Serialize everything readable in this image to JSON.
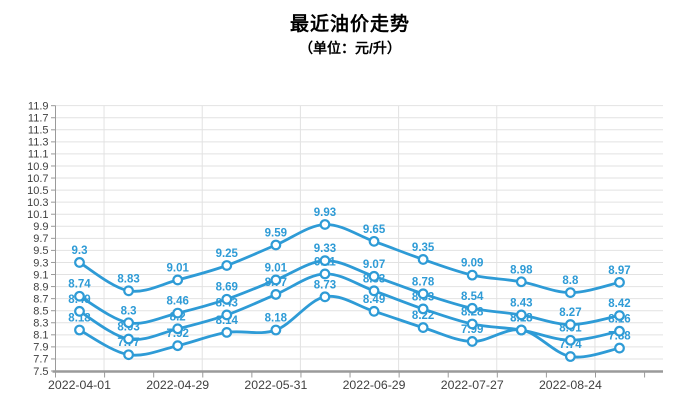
{
  "title": "最近油价走势",
  "subtitle": "（单位：元/升）",
  "chart_data": {
    "type": "line",
    "title": "最近油价走势",
    "subtitle": "（单位：元/升）",
    "x_tick_labels": [
      "2022-04-01",
      "2022-04-29",
      "2022-05-31",
      "2022-06-29",
      "2022-07-27",
      "2022-08-24"
    ],
    "points_per_tick": 2,
    "n_points": 12,
    "series": [
      {
        "name": "price-line-1",
        "values": [
          9.3,
          8.83,
          9.01,
          9.25,
          9.59,
          9.93,
          9.65,
          9.35,
          9.09,
          8.98,
          8.8,
          8.97
        ]
      },
      {
        "name": "price-line-2",
        "values": [
          8.74,
          8.3,
          8.46,
          8.69,
          9.01,
          9.33,
          9.07,
          8.78,
          8.54,
          8.43,
          8.27,
          8.42
        ]
      },
      {
        "name": "price-line-3",
        "values": [
          8.49,
          8.03,
          8.2,
          8.43,
          8.77,
          9.11,
          8.83,
          8.53,
          8.28,
          8.18,
          8.01,
          8.16
        ]
      },
      {
        "name": "price-line-4",
        "values": [
          8.18,
          7.77,
          7.92,
          8.14,
          8.18,
          8.73,
          8.49,
          8.22,
          7.99,
          8.18,
          7.74,
          7.88
        ]
      }
    ],
    "ylim": [
      7.5,
      11.9
    ],
    "y_tick_step": 0.2,
    "y_tick_labels": [
      "7.5",
      "7.7",
      "7.9",
      "8.1",
      "8.3",
      "8.5",
      "8.7",
      "8.9",
      "9.1",
      "9.3",
      "9.5",
      "9.7",
      "9.9",
      "10.1",
      "10.3",
      "10.5",
      "10.7",
      "10.9",
      "11.1",
      "11.3",
      "11.5",
      "11.7",
      "11.9"
    ],
    "grid": true,
    "legend": "none",
    "smooth": true,
    "data_labels": true,
    "colors": {
      "line": "#2e9bd6",
      "label": "#2e9bd6",
      "axis_text": "#3f3f3f",
      "grid": "#e2e2e2",
      "axis_line": "#9a9a9a",
      "marker_fill": "#ffffff"
    }
  }
}
